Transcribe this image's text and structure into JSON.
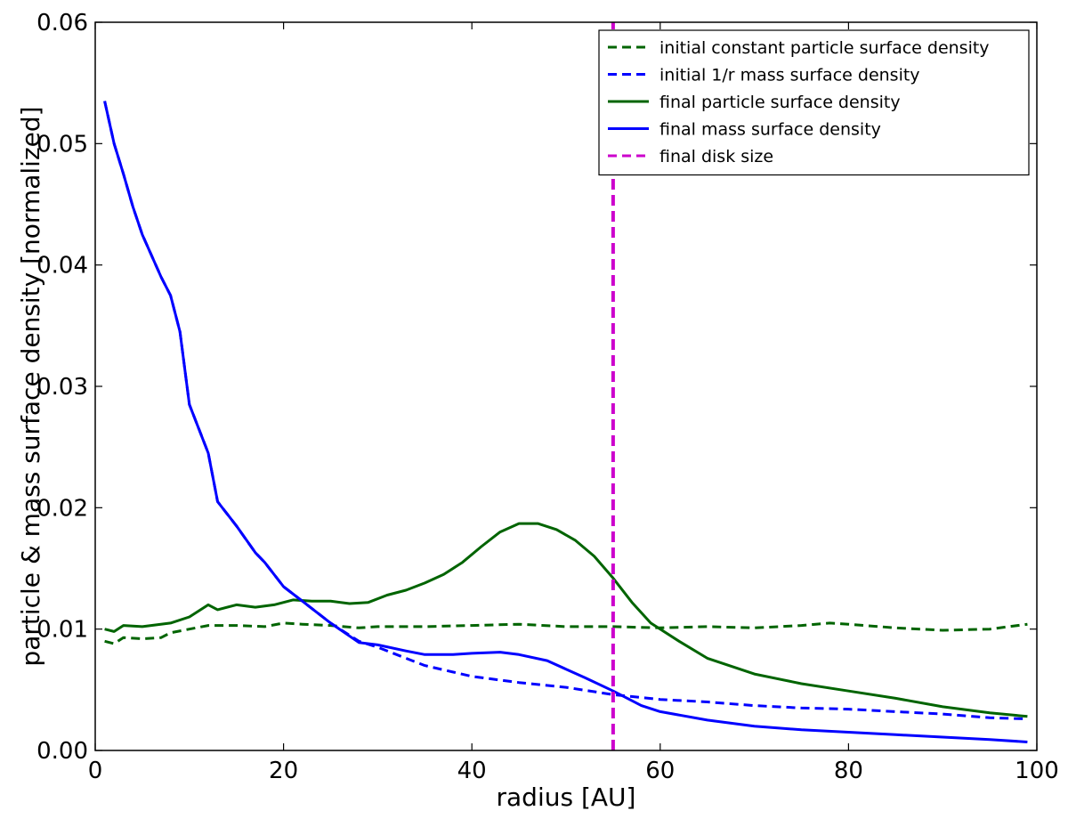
{
  "chart_data": {
    "type": "line",
    "title": "",
    "xlabel": "radius [AU]",
    "ylabel": "particle & mass surface density [normalized]",
    "xlim": [
      0,
      100
    ],
    "ylim": [
      0,
      0.06
    ],
    "xticks": [
      0,
      20,
      40,
      60,
      80,
      100
    ],
    "xtick_labels": [
      "0",
      "20",
      "40",
      "60",
      "80",
      "100"
    ],
    "yticks": [
      0,
      0.01,
      0.02,
      0.03,
      0.04,
      0.05,
      0.06
    ],
    "ytick_labels": [
      "0.00",
      "0.01",
      "0.02",
      "0.03",
      "0.04",
      "0.05",
      "0.06"
    ],
    "grid": false,
    "legend_position": "top-right",
    "series": [
      {
        "name": "initial constant particle surface density",
        "color": "#006400",
        "style": "dashed",
        "x": [
          1,
          2,
          3,
          5,
          7,
          8,
          10,
          12,
          15,
          18,
          20,
          22,
          25,
          28,
          30,
          35,
          40,
          45,
          50,
          55,
          60,
          65,
          70,
          75,
          78,
          80,
          85,
          90,
          95,
          99
        ],
        "y": [
          0.009,
          0.0088,
          0.0093,
          0.0092,
          0.0093,
          0.0097,
          0.01,
          0.0103,
          0.0103,
          0.0102,
          0.0105,
          0.0104,
          0.0103,
          0.0101,
          0.0102,
          0.0102,
          0.0103,
          0.0104,
          0.0102,
          0.0102,
          0.0101,
          0.0102,
          0.0101,
          0.0103,
          0.0105,
          0.0104,
          0.0101,
          0.0099,
          0.01,
          0.0104
        ]
      },
      {
        "name": "initial 1/r mass surface density",
        "color": "#0000ff",
        "style": "dashed",
        "x": [
          1,
          2,
          3,
          4,
          5,
          7,
          8,
          9,
          10,
          12,
          13,
          15,
          17,
          18,
          20,
          22,
          25,
          28,
          30,
          35,
          40,
          45,
          50,
          55,
          60,
          65,
          70,
          75,
          80,
          85,
          90,
          95,
          99
        ],
        "y": [
          0.0535,
          0.05,
          0.0475,
          0.0448,
          0.0425,
          0.039,
          0.0375,
          0.0345,
          0.0285,
          0.0245,
          0.0205,
          0.0185,
          0.0163,
          0.0155,
          0.0135,
          0.0123,
          0.0105,
          0.009,
          0.0085,
          0.007,
          0.0061,
          0.0056,
          0.0052,
          0.0046,
          0.0042,
          0.004,
          0.0037,
          0.0035,
          0.0034,
          0.0032,
          0.003,
          0.0027,
          0.0026
        ]
      },
      {
        "name": "final particle surface density",
        "color": "#006400",
        "style": "solid",
        "x": [
          1,
          2,
          3,
          5,
          8,
          10,
          12,
          13,
          15,
          17,
          19,
          21,
          23,
          25,
          27,
          29,
          31,
          33,
          35,
          37,
          39,
          41,
          43,
          45,
          47,
          49,
          51,
          53,
          55,
          57,
          59,
          62,
          65,
          70,
          75,
          80,
          85,
          90,
          95,
          99
        ],
        "y": [
          0.01,
          0.0098,
          0.0103,
          0.0102,
          0.0105,
          0.011,
          0.012,
          0.0116,
          0.012,
          0.0118,
          0.012,
          0.0124,
          0.0123,
          0.0123,
          0.0121,
          0.0122,
          0.0128,
          0.0132,
          0.0138,
          0.0145,
          0.0155,
          0.0168,
          0.018,
          0.0187,
          0.0187,
          0.0182,
          0.0173,
          0.016,
          0.0142,
          0.0122,
          0.0105,
          0.009,
          0.0076,
          0.0063,
          0.0055,
          0.0049,
          0.0043,
          0.0036,
          0.0031,
          0.0028
        ]
      },
      {
        "name": "final mass surface density",
        "color": "#0000ff",
        "style": "solid",
        "x": [
          1,
          2,
          3,
          4,
          5,
          7,
          8,
          9,
          10,
          12,
          13,
          15,
          17,
          18,
          20,
          22,
          25,
          28,
          30,
          33,
          35,
          38,
          40,
          43,
          45,
          48,
          50,
          52,
          55,
          58,
          60,
          65,
          70,
          75,
          80,
          85,
          90,
          95,
          99
        ],
        "y": [
          0.0535,
          0.05,
          0.0475,
          0.0448,
          0.0425,
          0.039,
          0.0375,
          0.0345,
          0.0285,
          0.0245,
          0.0205,
          0.0185,
          0.0163,
          0.0155,
          0.0135,
          0.0123,
          0.0105,
          0.0089,
          0.0087,
          0.0082,
          0.0079,
          0.0079,
          0.008,
          0.0081,
          0.0079,
          0.0074,
          0.0067,
          0.006,
          0.0049,
          0.0037,
          0.0032,
          0.0025,
          0.002,
          0.0017,
          0.0015,
          0.0013,
          0.0011,
          0.0009,
          0.0007
        ]
      },
      {
        "name": "final disk size",
        "color": "#cc00cc",
        "style": "dashed",
        "x": [
          55,
          55
        ],
        "y": [
          0,
          0.06
        ]
      }
    ]
  }
}
